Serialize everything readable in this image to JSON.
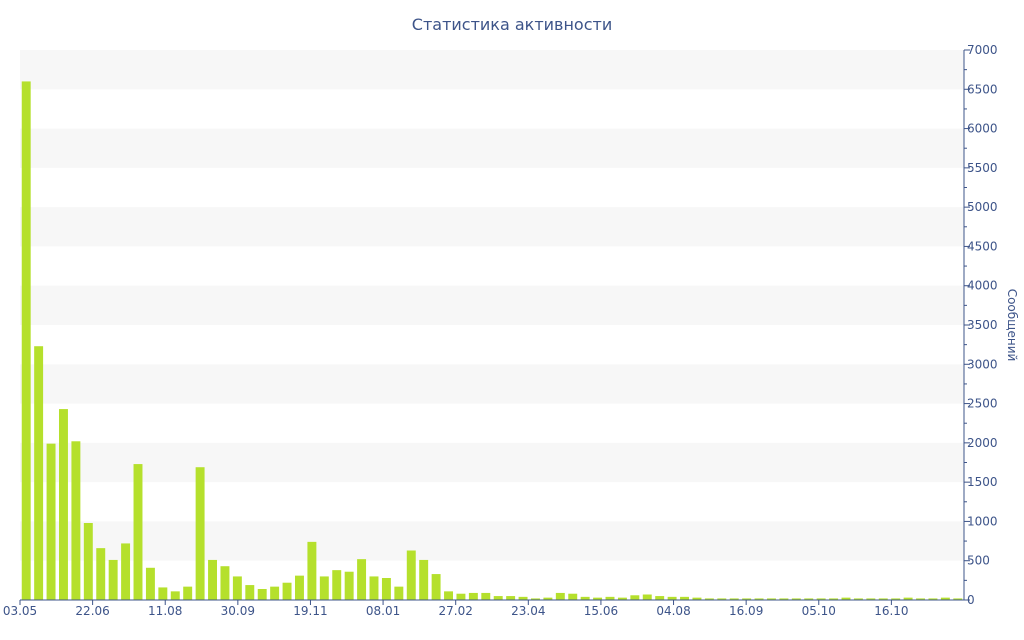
{
  "chart_data": {
    "type": "bar",
    "title": "Статистика активности",
    "xlabel": "",
    "ylabel": "Сообщений",
    "ylim": [
      0,
      7000
    ],
    "y_axis_side": "right",
    "yticks": [
      0,
      500,
      1000,
      1500,
      2000,
      2500,
      3000,
      3500,
      4000,
      4500,
      5000,
      5500,
      6000,
      6500,
      7000
    ],
    "x_tick_labels": [
      "03.05",
      "22.06",
      "11.08",
      "30.09",
      "19.11",
      "08.01",
      "27.02",
      "23.04",
      "15.06",
      "04.08",
      "16.09",
      "05.10",
      "16.10"
    ],
    "grid": "alternating horizontal bands",
    "bar_color": "#b5e02c",
    "values": [
      6600,
      3230,
      1990,
      2430,
      2020,
      980,
      660,
      510,
      720,
      1730,
      410,
      160,
      110,
      170,
      1690,
      510,
      430,
      300,
      190,
      140,
      170,
      220,
      310,
      740,
      300,
      380,
      360,
      520,
      300,
      280,
      170,
      630,
      510,
      330,
      110,
      80,
      90,
      90,
      50,
      50,
      40,
      20,
      30,
      90,
      80,
      40,
      30,
      40,
      30,
      60,
      70,
      50,
      40,
      40,
      30,
      20,
      20,
      20,
      20,
      20,
      20,
      20,
      20,
      20,
      20,
      20,
      30,
      20,
      20,
      20,
      20,
      30,
      20,
      20,
      30,
      20
    ]
  }
}
